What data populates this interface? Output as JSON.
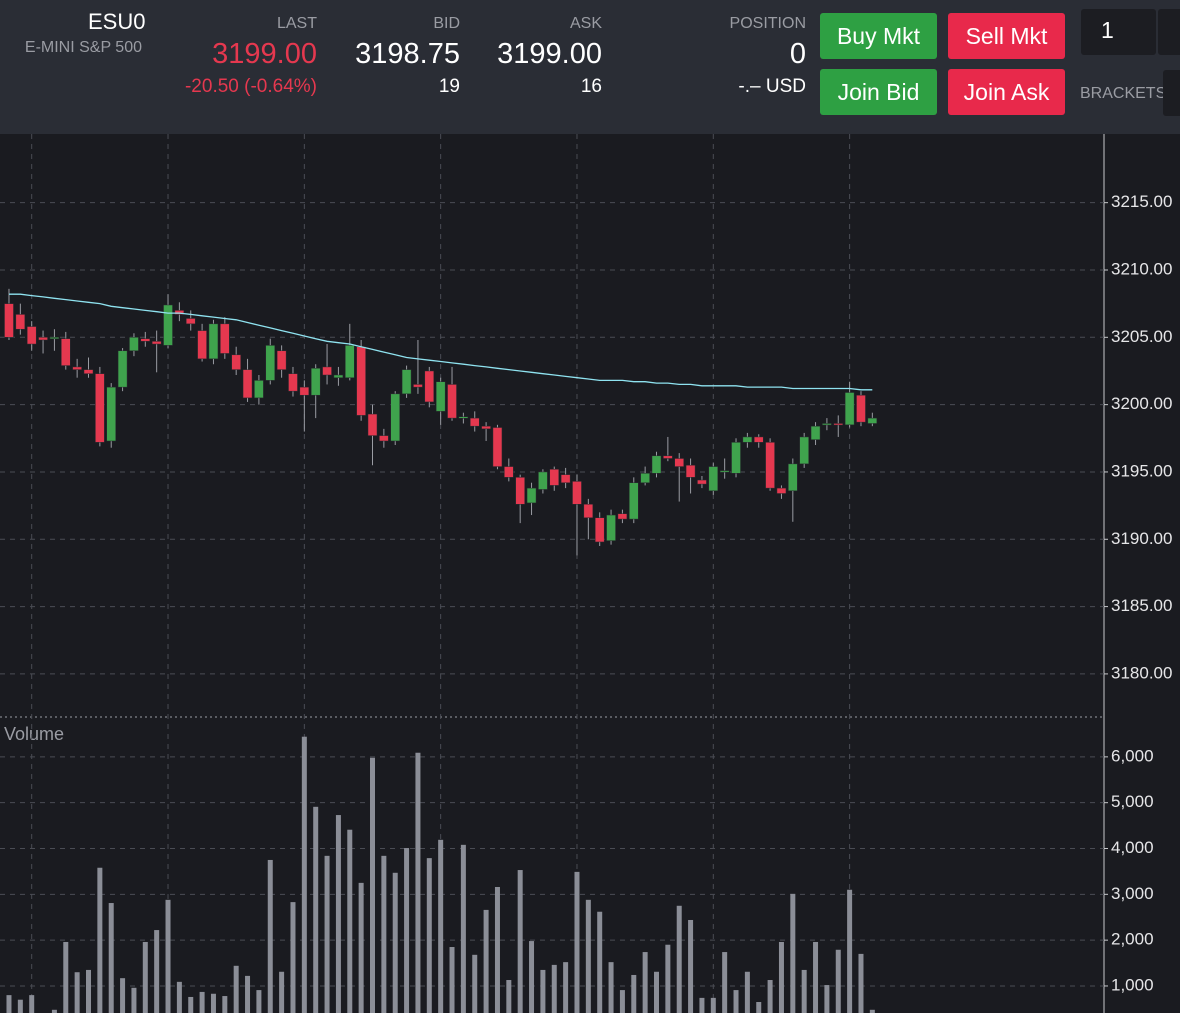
{
  "header": {
    "symbol": "ESU0",
    "description": "E-MINI S&P 500",
    "last": {
      "label": "LAST",
      "value": "3199.00",
      "change": "-20.50 (-0.64%)"
    },
    "bid": {
      "label": "BID",
      "value": "3198.75",
      "size": "19"
    },
    "ask": {
      "label": "ASK",
      "value": "3199.00",
      "size": "16"
    },
    "position": {
      "label": "POSITION",
      "value": "0",
      "pnl": "-.– USD"
    },
    "buttons": [
      "Buy Mkt",
      "Sell Mkt",
      "Join Bid",
      "Join Ask"
    ],
    "quantity": "1",
    "brackets": "BRACKETS"
  },
  "chart_data": [
    {
      "type": "candlestick",
      "up_color": "#3fa34d",
      "down_color": "#e5384f",
      "grid": true,
      "open": [
        3207.5,
        3206.7,
        3205.8,
        3205,
        3205,
        3204.9,
        3202.8,
        3202.6,
        3202.3,
        3197.3,
        3201.3,
        3204,
        3204.9,
        3204.7,
        3204.4,
        3207,
        3206.4,
        3205.5,
        3203.4,
        3206,
        3203.7,
        3202.6,
        3200.5,
        3201.8,
        3204,
        3202.3,
        3201.3,
        3200.7,
        3202.8,
        3202,
        3202,
        3204.3,
        3199.3,
        3197.7,
        3197.3,
        3200.8,
        3201.5,
        3202.5,
        3199.5,
        3201.5,
        3199,
        3199,
        3198.4,
        3198.3,
        3195.4,
        3194.6,
        3192.7,
        3193.7,
        3195.2,
        3194.8,
        3194.3,
        3192.6,
        3191.6,
        3189.9,
        3191.9,
        3191.5,
        3194.2,
        3194.9,
        3196.2,
        3196,
        3195.5,
        3194.4,
        3193.6,
        3195.1,
        3194.9,
        3197.2,
        3197.6,
        3197.2,
        3193.8,
        3193.6,
        3195.6,
        3197.4,
        3198.5,
        3198.6,
        3198.5,
        3200.7,
        3198.6
      ],
      "high": [
        3208.6,
        3207.5,
        3206.2,
        3205.5,
        3205.6,
        3205.4,
        3203.4,
        3203.5,
        3202.8,
        3201.6,
        3204.2,
        3205.3,
        3205.4,
        3205.5,
        3208.2,
        3207.6,
        3207,
        3206,
        3206.3,
        3206.5,
        3204.3,
        3203.4,
        3202.2,
        3204.9,
        3204.4,
        3202.8,
        3201.8,
        3203,
        3204.5,
        3202.8,
        3206,
        3204.8,
        3200,
        3198.2,
        3201,
        3202.9,
        3204.8,
        3202.8,
        3202,
        3202.8,
        3199.4,
        3199.5,
        3198.7,
        3198.5,
        3196,
        3194.8,
        3194.2,
        3195.2,
        3195.4,
        3195.3,
        3194.8,
        3193,
        3192,
        3192.2,
        3192.2,
        3194.6,
        3195.4,
        3196.5,
        3197.6,
        3196.4,
        3196,
        3194.7,
        3195.7,
        3196,
        3197.5,
        3197.9,
        3197.8,
        3197.5,
        3194,
        3196,
        3197.9,
        3198.7,
        3199,
        3199.2,
        3201.7,
        3201,
        3199.4
      ],
      "low": [
        3204.8,
        3205.2,
        3204,
        3203.8,
        3204,
        3202.6,
        3202,
        3202,
        3196.9,
        3196.8,
        3201,
        3203.6,
        3204.3,
        3202.4,
        3204.2,
        3206.2,
        3205.5,
        3203.2,
        3203,
        3203.4,
        3202.2,
        3200.2,
        3200,
        3201.5,
        3202,
        3200.6,
        3198,
        3199,
        3201.5,
        3201.4,
        3201.8,
        3198.8,
        3195.5,
        3196.8,
        3197,
        3200.5,
        3200.8,
        3199.8,
        3198.5,
        3198.8,
        3198.6,
        3198,
        3197.3,
        3195.2,
        3194.3,
        3191.2,
        3191.8,
        3193.4,
        3193.6,
        3193.8,
        3188.8,
        3190,
        3189.5,
        3189.6,
        3191.2,
        3191.2,
        3194,
        3194.6,
        3195.8,
        3192.8,
        3193.4,
        3193.8,
        3193.3,
        3194.5,
        3194.6,
        3196.8,
        3196.8,
        3193.6,
        3193,
        3191.3,
        3195.3,
        3197,
        3198.1,
        3197.6,
        3198.3,
        3198.4,
        3198.4
      ],
      "close": [
        3205,
        3205.6,
        3204.5,
        3204.8,
        3205,
        3202.9,
        3202.6,
        3202.3,
        3197.2,
        3201.3,
        3204,
        3205,
        3204.7,
        3204.5,
        3207.4,
        3206.7,
        3206,
        3203.4,
        3206,
        3203.8,
        3202.6,
        3200.5,
        3201.8,
        3204.4,
        3202.6,
        3201,
        3200.7,
        3202.7,
        3202.2,
        3202.2,
        3204.4,
        3199.2,
        3197.7,
        3197.3,
        3200.8,
        3202.6,
        3201.3,
        3200.2,
        3201.7,
        3199,
        3199.1,
        3198.4,
        3198.2,
        3195.4,
        3194.6,
        3192.6,
        3193.8,
        3195,
        3194,
        3194.2,
        3192.6,
        3191.6,
        3189.8,
        3191.8,
        3191.5,
        3194.2,
        3194.9,
        3196.2,
        3196,
        3195.4,
        3194.6,
        3194.1,
        3195.4,
        3195.1,
        3197.2,
        3197.6,
        3197.2,
        3193.8,
        3193.4,
        3195.6,
        3197.6,
        3198.4,
        3198.6,
        3198.5,
        3200.9,
        3198.7,
        3199
      ],
      "overlay": {
        "color": "#8fe3f0",
        "values": [
          3208.2,
          3208.2,
          3208.1,
          3208.0,
          3207.9,
          3207.8,
          3207.7,
          3207.6,
          3207.5,
          3207.3,
          3207.2,
          3207.1,
          3207.0,
          3206.9,
          3206.8,
          3206.8,
          3206.7,
          3206.6,
          3206.5,
          3206.4,
          3206.3,
          3206.1,
          3205.9,
          3205.7,
          3205.5,
          3205.3,
          3205.1,
          3204.9,
          3204.7,
          3204.6,
          3204.5,
          3204.3,
          3204.1,
          3203.9,
          3203.7,
          3203.5,
          3203.4,
          3203.3,
          3203.2,
          3203.1,
          3203.0,
          3202.9,
          3202.8,
          3202.7,
          3202.6,
          3202.5,
          3202.4,
          3202.3,
          3202.2,
          3202.1,
          3202.0,
          3201.9,
          3201.8,
          3201.8,
          3201.8,
          3201.7,
          3201.7,
          3201.6,
          3201.6,
          3201.5,
          3201.5,
          3201.4,
          3201.4,
          3201.4,
          3201.4,
          3201.3,
          3201.3,
          3201.3,
          3201.3,
          3201.2,
          3201.2,
          3201.2,
          3201.2,
          3201.2,
          3201.2,
          3201.1,
          3201.1
        ]
      },
      "ylim": [
        3176.8,
        3220.1
      ],
      "yticks": [
        {
          "value": 3180,
          "label": "3180.00"
        },
        {
          "value": 3185,
          "label": "3185.00"
        },
        {
          "value": 3190,
          "label": "3190.00"
        },
        {
          "value": 3195,
          "label": "3195.00"
        },
        {
          "value": 3200,
          "label": "3200.00"
        },
        {
          "value": 3205,
          "label": "3205.00"
        },
        {
          "value": 3210,
          "label": "3210.00"
        },
        {
          "value": 3215,
          "label": "3215.00"
        }
      ]
    },
    {
      "type": "bar",
      "title": "Volume",
      "color": "#8b8e97",
      "grid": true,
      "values": [
        800,
        700,
        800,
        350,
        480,
        1960,
        1300,
        1350,
        3580,
        2810,
        1170,
        960,
        1960,
        2220,
        2880,
        1090,
        760,
        870,
        830,
        780,
        1440,
        1220,
        910,
        3750,
        1310,
        2830,
        6440,
        4910,
        3840,
        4730,
        4410,
        3250,
        5980,
        3840,
        3470,
        4010,
        6090,
        3790,
        4190,
        1850,
        4080,
        1680,
        2660,
        3160,
        1130,
        3530,
        1980,
        1350,
        1460,
        1520,
        3490,
        2880,
        2620,
        1520,
        910,
        1240,
        1740,
        1310,
        1900,
        2750,
        2440,
        740,
        740,
        1740,
        910,
        1310,
        650,
        1130,
        1960,
        3010,
        1350,
        1960,
        1020,
        1790,
        3100,
        1700,
        480
      ],
      "ylim": [
        410,
        6870
      ],
      "yticks": [
        {
          "value": 1000,
          "label": "1,000"
        },
        {
          "value": 2000,
          "label": "2,000"
        },
        {
          "value": 3000,
          "label": "3,000"
        },
        {
          "value": 4000,
          "label": "4,000"
        },
        {
          "value": 5000,
          "label": "5,000"
        },
        {
          "value": 6000,
          "label": "6,000"
        }
      ]
    }
  ]
}
